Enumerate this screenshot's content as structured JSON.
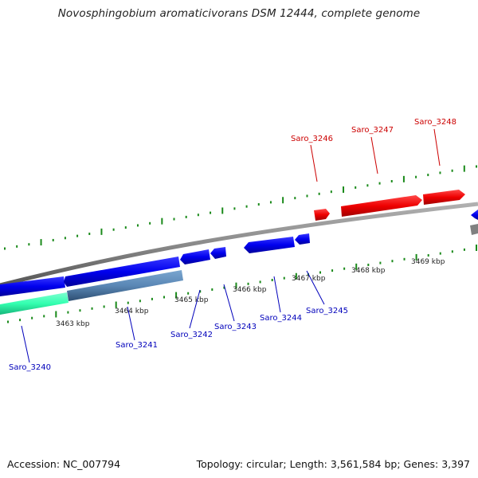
{
  "title": "Novosphingobium aromaticivorans DSM 12444, complete genome",
  "accession": "Accession: NC_007794",
  "topology": "Topology: circular; Length: 3,561,584 bp; Genes: 3,397",
  "colors": {
    "forward_gene": "#ff0000",
    "reverse_gene": "#0000ff",
    "backbone": "#8a8a8a",
    "tick": "#1a8a1a",
    "gene_label_forward": "#cc0000",
    "gene_label_reverse": "#0000bb",
    "cds_light": "#5a87b5",
    "cds_cyan": "#33ffb0"
  },
  "ticks": [
    {
      "label": "3463 kbp"
    },
    {
      "label": "3464 kbp"
    },
    {
      "label": "3465 kbp"
    },
    {
      "label": "3466 kbp"
    },
    {
      "label": "3467 kbp"
    },
    {
      "label": "3468 kbp"
    },
    {
      "label": "3469 kbp"
    }
  ],
  "genes": [
    {
      "name": "Saro_3240",
      "strand": "reverse"
    },
    {
      "name": "Saro_3241",
      "strand": "reverse"
    },
    {
      "name": "Saro_3242",
      "strand": "reverse"
    },
    {
      "name": "Saro_3243",
      "strand": "reverse"
    },
    {
      "name": "Saro_3244",
      "strand": "reverse"
    },
    {
      "name": "Saro_3245",
      "strand": "reverse"
    },
    {
      "name": "Saro_3246",
      "strand": "forward"
    },
    {
      "name": "Saro_3247",
      "strand": "forward"
    },
    {
      "name": "Saro_3248",
      "strand": "forward"
    }
  ]
}
